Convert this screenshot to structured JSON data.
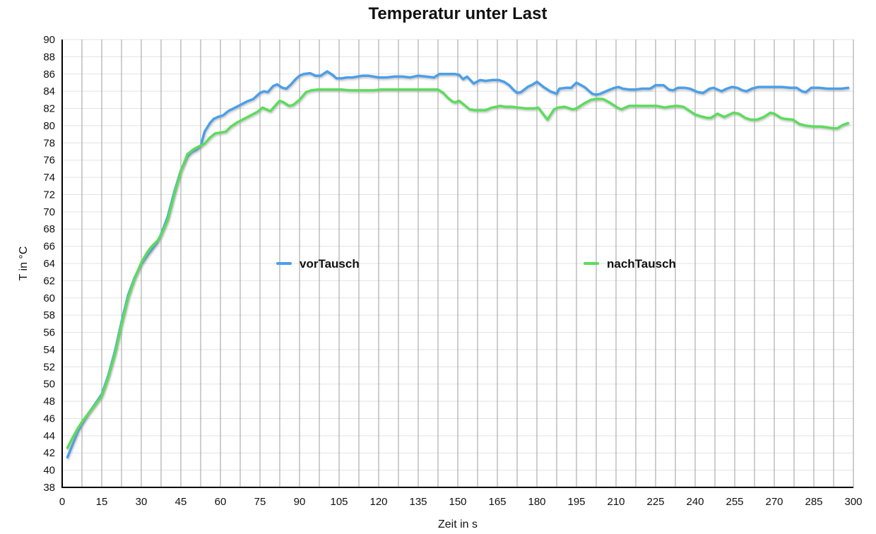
{
  "chart_data": {
    "type": "line",
    "title": "Temperatur unter Last",
    "xlabel": "Zeit in s",
    "ylabel": "T in °C",
    "xlim": [
      0,
      300
    ],
    "ylim": [
      38,
      90
    ],
    "x_ticks": [
      0,
      15,
      30,
      45,
      60,
      75,
      90,
      105,
      120,
      135,
      150,
      165,
      180,
      195,
      210,
      225,
      240,
      255,
      270,
      285,
      300
    ],
    "y_ticks": [
      38,
      40,
      42,
      44,
      46,
      48,
      50,
      52,
      54,
      56,
      58,
      60,
      62,
      64,
      66,
      68,
      70,
      72,
      74,
      76,
      78,
      80,
      82,
      84,
      86,
      88,
      90
    ],
    "x_gridline_step": 7.5,
    "y_gridline_step": 2,
    "grid": {
      "vertical_color": "#9e9e9e",
      "horizontal_color": "#e3e3e3",
      "axis_color": "#000000"
    },
    "legend": {
      "position": "inside-middle",
      "entries": [
        "vorTausch",
        "nachTausch"
      ]
    },
    "series": [
      {
        "name": "vorTausch",
        "color": "#4C9FE8",
        "points": [
          [
            2,
            41.5
          ],
          [
            4,
            43.0
          ],
          [
            6,
            44.5
          ],
          [
            7.5,
            45.3
          ],
          [
            10,
            46.6
          ],
          [
            12.5,
            47.7
          ],
          [
            15,
            48.8
          ],
          [
            17.5,
            51.0
          ],
          [
            20,
            53.8
          ],
          [
            22.5,
            57.2
          ],
          [
            25,
            60.3
          ],
          [
            27.5,
            62.4
          ],
          [
            30,
            63.9
          ],
          [
            32.5,
            65.0
          ],
          [
            34,
            65.6
          ],
          [
            36,
            66.4
          ],
          [
            37.5,
            67.4
          ],
          [
            40,
            69.4
          ],
          [
            42.5,
            72.3
          ],
          [
            45,
            74.8
          ],
          [
            47.5,
            76.4
          ],
          [
            49,
            76.9
          ],
          [
            51,
            77.2
          ],
          [
            52.5,
            77.6
          ],
          [
            54,
            79.3
          ],
          [
            56,
            80.3
          ],
          [
            57.5,
            80.8
          ],
          [
            59,
            81.0
          ],
          [
            61,
            81.2
          ],
          [
            63,
            81.7
          ],
          [
            65,
            82.0
          ],
          [
            67.5,
            82.4
          ],
          [
            70,
            82.8
          ],
          [
            72.5,
            83.1
          ],
          [
            75,
            83.8
          ],
          [
            76.5,
            84.0
          ],
          [
            78,
            83.9
          ],
          [
            80,
            84.6
          ],
          [
            81.5,
            84.8
          ],
          [
            83.5,
            84.4
          ],
          [
            85,
            84.3
          ],
          [
            86.5,
            84.7
          ],
          [
            88.5,
            85.4
          ],
          [
            90,
            85.8
          ],
          [
            91.5,
            86.0
          ],
          [
            94,
            86.1
          ],
          [
            96,
            85.8
          ],
          [
            98,
            85.8
          ],
          [
            100.5,
            86.3
          ],
          [
            102.5,
            85.9
          ],
          [
            104,
            85.5
          ],
          [
            106,
            85.5
          ],
          [
            108,
            85.6
          ],
          [
            110,
            85.6
          ],
          [
            112,
            85.7
          ],
          [
            114,
            85.8
          ],
          [
            116,
            85.8
          ],
          [
            118,
            85.7
          ],
          [
            120,
            85.6
          ],
          [
            123,
            85.6
          ],
          [
            126,
            85.7
          ],
          [
            129,
            85.7
          ],
          [
            132,
            85.6
          ],
          [
            135,
            85.8
          ],
          [
            138,
            85.7
          ],
          [
            141,
            85.6
          ],
          [
            143,
            86.0
          ],
          [
            146,
            86.0
          ],
          [
            149,
            86.0
          ],
          [
            150.5,
            85.9
          ],
          [
            152,
            85.4
          ],
          [
            153.5,
            85.7
          ],
          [
            156,
            84.9
          ],
          [
            158.5,
            85.3
          ],
          [
            160.5,
            85.2
          ],
          [
            163,
            85.3
          ],
          [
            165.5,
            85.3
          ],
          [
            167.5,
            85.1
          ],
          [
            169.5,
            84.7
          ],
          [
            171,
            84.2
          ],
          [
            172.5,
            83.8
          ],
          [
            174,
            83.9
          ],
          [
            176.5,
            84.5
          ],
          [
            178.5,
            84.8
          ],
          [
            180,
            85.1
          ],
          [
            182.5,
            84.5
          ],
          [
            185,
            84.0
          ],
          [
            187.5,
            83.7
          ],
          [
            188.5,
            84.3
          ],
          [
            191,
            84.4
          ],
          [
            193,
            84.4
          ],
          [
            195,
            85.0
          ],
          [
            198,
            84.5
          ],
          [
            199.5,
            84.1
          ],
          [
            201,
            83.7
          ],
          [
            202.5,
            83.6
          ],
          [
            204,
            83.7
          ],
          [
            207,
            84.1
          ],
          [
            209.5,
            84.4
          ],
          [
            211,
            84.5
          ],
          [
            212.5,
            84.3
          ],
          [
            215,
            84.2
          ],
          [
            217.5,
            84.2
          ],
          [
            220,
            84.3
          ],
          [
            223,
            84.3
          ],
          [
            225,
            84.7
          ],
          [
            228,
            84.7
          ],
          [
            230,
            84.2
          ],
          [
            231.5,
            84.1
          ],
          [
            233.5,
            84.4
          ],
          [
            236,
            84.4
          ],
          [
            238,
            84.3
          ],
          [
            241,
            83.9
          ],
          [
            243,
            83.8
          ],
          [
            245.5,
            84.3
          ],
          [
            247,
            84.4
          ],
          [
            248.5,
            84.2
          ],
          [
            250,
            84.0
          ],
          [
            252,
            84.3
          ],
          [
            254,
            84.5
          ],
          [
            256,
            84.4
          ],
          [
            258,
            84.1
          ],
          [
            259.5,
            84.0
          ],
          [
            261.5,
            84.3
          ],
          [
            264,
            84.5
          ],
          [
            267,
            84.5
          ],
          [
            270,
            84.5
          ],
          [
            273,
            84.5
          ],
          [
            276,
            84.4
          ],
          [
            278.5,
            84.4
          ],
          [
            280.5,
            84.0
          ],
          [
            282,
            83.9
          ],
          [
            284,
            84.4
          ],
          [
            287,
            84.4
          ],
          [
            290,
            84.3
          ],
          [
            293,
            84.3
          ],
          [
            295.5,
            84.3
          ],
          [
            298,
            84.4
          ]
        ]
      },
      {
        "name": "nachTausch",
        "color": "#5BDC5B",
        "points": [
          [
            2,
            42.6
          ],
          [
            4,
            43.8
          ],
          [
            6,
            44.9
          ],
          [
            7.5,
            45.6
          ],
          [
            10,
            46.6
          ],
          [
            12.5,
            47.6
          ],
          [
            15,
            48.6
          ],
          [
            17.5,
            50.8
          ],
          [
            20,
            53.5
          ],
          [
            22.5,
            56.9
          ],
          [
            25,
            60.0
          ],
          [
            27.5,
            62.3
          ],
          [
            30,
            64.1
          ],
          [
            32.5,
            65.4
          ],
          [
            34,
            66.0
          ],
          [
            36,
            66.6
          ],
          [
            37.5,
            67.3
          ],
          [
            40,
            69.0
          ],
          [
            42.5,
            72.0
          ],
          [
            45,
            74.7
          ],
          [
            47.5,
            76.7
          ],
          [
            50,
            77.3
          ],
          [
            52.5,
            77.7
          ],
          [
            54,
            77.9
          ],
          [
            56,
            78.6
          ],
          [
            58,
            79.1
          ],
          [
            60,
            79.2
          ],
          [
            62,
            79.3
          ],
          [
            64,
            79.9
          ],
          [
            66.5,
            80.4
          ],
          [
            69,
            80.8
          ],
          [
            71.5,
            81.2
          ],
          [
            74,
            81.6
          ],
          [
            76,
            82.1
          ],
          [
            78,
            81.8
          ],
          [
            79,
            81.7
          ],
          [
            81,
            82.4
          ],
          [
            82.5,
            82.9
          ],
          [
            84,
            82.7
          ],
          [
            86,
            82.3
          ],
          [
            87.5,
            82.4
          ],
          [
            90,
            83.0
          ],
          [
            92.5,
            83.9
          ],
          [
            94.5,
            84.1
          ],
          [
            97,
            84.2
          ],
          [
            100,
            84.2
          ],
          [
            103,
            84.2
          ],
          [
            106,
            84.2
          ],
          [
            109,
            84.1
          ],
          [
            112,
            84.1
          ],
          [
            115,
            84.1
          ],
          [
            118,
            84.1
          ],
          [
            121,
            84.2
          ],
          [
            124,
            84.2
          ],
          [
            127,
            84.2
          ],
          [
            130,
            84.2
          ],
          [
            133,
            84.2
          ],
          [
            136,
            84.2
          ],
          [
            139,
            84.2
          ],
          [
            142.5,
            84.2
          ],
          [
            144.5,
            83.8
          ],
          [
            146,
            83.3
          ],
          [
            148,
            82.8
          ],
          [
            149,
            82.7
          ],
          [
            150.5,
            82.9
          ],
          [
            152.5,
            82.4
          ],
          [
            154.5,
            81.9
          ],
          [
            156.5,
            81.8
          ],
          [
            158.5,
            81.8
          ],
          [
            160.5,
            81.8
          ],
          [
            163,
            82.1
          ],
          [
            166,
            82.3
          ],
          [
            168,
            82.2
          ],
          [
            170.5,
            82.2
          ],
          [
            173,
            82.1
          ],
          [
            176,
            82.0
          ],
          [
            179,
            82.0
          ],
          [
            180.5,
            82.1
          ],
          [
            182.5,
            81.3
          ],
          [
            184,
            80.7
          ],
          [
            186.5,
            81.9
          ],
          [
            188,
            82.1
          ],
          [
            190.5,
            82.2
          ],
          [
            193.5,
            81.9
          ],
          [
            195,
            82.0
          ],
          [
            198,
            82.6
          ],
          [
            200.5,
            83.0
          ],
          [
            202.5,
            83.1
          ],
          [
            205,
            83.1
          ],
          [
            207.5,
            82.7
          ],
          [
            210.5,
            82.1
          ],
          [
            212,
            81.9
          ],
          [
            215,
            82.3
          ],
          [
            217.5,
            82.3
          ],
          [
            220,
            82.3
          ],
          [
            223,
            82.3
          ],
          [
            225.5,
            82.3
          ],
          [
            228.5,
            82.1
          ],
          [
            230,
            82.2
          ],
          [
            233,
            82.3
          ],
          [
            235.5,
            82.2
          ],
          [
            237,
            81.9
          ],
          [
            240,
            81.3
          ],
          [
            242,
            81.1
          ],
          [
            244.5,
            80.9
          ],
          [
            246,
            80.9
          ],
          [
            248.5,
            81.4
          ],
          [
            251,
            81.0
          ],
          [
            254.5,
            81.5
          ],
          [
            256.5,
            81.4
          ],
          [
            259,
            80.9
          ],
          [
            261,
            80.7
          ],
          [
            263.5,
            80.7
          ],
          [
            266,
            81.0
          ],
          [
            268.5,
            81.5
          ],
          [
            270,
            81.4
          ],
          [
            272.5,
            80.9
          ],
          [
            274,
            80.8
          ],
          [
            277,
            80.7
          ],
          [
            279.5,
            80.2
          ],
          [
            282,
            80.0
          ],
          [
            285,
            79.9
          ],
          [
            287.5,
            79.9
          ],
          [
            290,
            79.8
          ],
          [
            292.5,
            79.7
          ],
          [
            294,
            79.7
          ],
          [
            295.5,
            80.0
          ],
          [
            297,
            80.2
          ],
          [
            298,
            80.3
          ]
        ]
      }
    ]
  }
}
